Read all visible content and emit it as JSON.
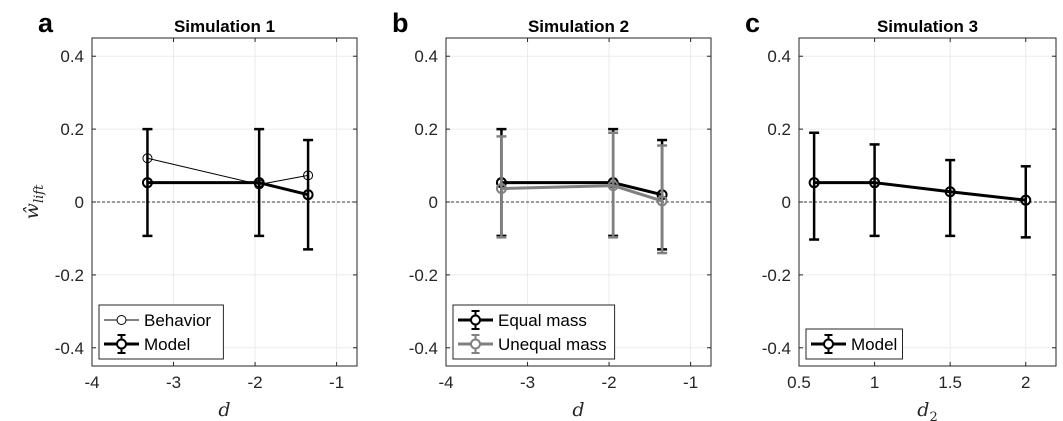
{
  "figure": {
    "ylabel": "ŵ",
    "ylabel_sub": "lift",
    "panel_letters": [
      "a",
      "b",
      "c"
    ],
    "yticks": [
      -0.4,
      -0.2,
      0,
      0.2,
      0.4
    ],
    "ytick_labels": [
      "-0.4",
      "-0.2",
      "0",
      "0.2",
      "0.4"
    ]
  },
  "chart_data": [
    {
      "type": "line",
      "letter": "a",
      "title": "Simulation 1",
      "xlabel": "d",
      "xlabel_sub": "",
      "xlim": [
        -4,
        -0.75
      ],
      "ylim": [
        -0.45,
        0.45
      ],
      "xticks": [
        -4,
        -3,
        -2,
        -1
      ],
      "xtick_labels": [
        "-4",
        "-3",
        "-2",
        "-1"
      ],
      "grid": true,
      "zero_line": true,
      "legend_position": "bottom-left",
      "series": [
        {
          "name": "Behavior",
          "x": [
            -3.32,
            -1.95,
            -1.35
          ],
          "y": [
            0.12,
            0.048,
            0.073
          ],
          "err": null,
          "color": "#000000",
          "width": 1,
          "marker": "circle"
        },
        {
          "name": "Model",
          "x": [
            -3.32,
            -1.95,
            -1.35
          ],
          "y": [
            0.053,
            0.053,
            0.02
          ],
          "err": [
            [
              -0.093,
              0.2
            ],
            [
              -0.093,
              0.2
            ],
            [
              -0.13,
              0.17
            ]
          ],
          "color": "#000000",
          "width": 3,
          "marker": "circle"
        }
      ]
    },
    {
      "type": "line",
      "letter": "b",
      "title": "Simulation 2",
      "xlabel": "d",
      "xlabel_sub": "",
      "xlim": [
        -4,
        -0.75
      ],
      "ylim": [
        -0.45,
        0.45
      ],
      "xticks": [
        -4,
        -3,
        -2,
        -1
      ],
      "xtick_labels": [
        "-4",
        "-3",
        "-2",
        "-1"
      ],
      "grid": true,
      "zero_line": true,
      "legend_position": "bottom-left",
      "series": [
        {
          "name": "Equal mass",
          "x": [
            -3.32,
            -1.95,
            -1.35
          ],
          "y": [
            0.053,
            0.053,
            0.02
          ],
          "err": [
            [
              -0.093,
              0.2
            ],
            [
              -0.093,
              0.2
            ],
            [
              -0.13,
              0.17
            ]
          ],
          "color": "#000000",
          "width": 3,
          "marker": "circle"
        },
        {
          "name": "Unequal mass",
          "x": [
            -3.32,
            -1.95,
            -1.35
          ],
          "y": [
            0.037,
            0.045,
            0.003
          ],
          "err": [
            [
              -0.097,
              0.18
            ],
            [
              -0.097,
              0.19
            ],
            [
              -0.14,
              0.155
            ]
          ],
          "color": "#808080",
          "width": 3,
          "marker": "circle"
        }
      ]
    },
    {
      "type": "line",
      "letter": "c",
      "title": "Simulation 3",
      "xlabel": "d",
      "xlabel_sub": "2",
      "xlim": [
        0.5,
        2.2
      ],
      "ylim": [
        -0.45,
        0.45
      ],
      "xticks": [
        0.5,
        1,
        1.5,
        2
      ],
      "xtick_labels": [
        "0.5",
        "1",
        "1.5",
        "2"
      ],
      "grid": true,
      "zero_line": true,
      "legend_position": "bottom-left",
      "series": [
        {
          "name": "Model",
          "x": [
            0.6,
            1.0,
            1.5,
            2.0
          ],
          "y": [
            0.053,
            0.053,
            0.028,
            0.005
          ],
          "err": [
            [
              -0.103,
              0.19
            ],
            [
              -0.093,
              0.158
            ],
            [
              -0.093,
              0.115
            ],
            [
              -0.097,
              0.098
            ]
          ],
          "color": "#000000",
          "width": 3,
          "marker": "circle"
        }
      ]
    }
  ]
}
